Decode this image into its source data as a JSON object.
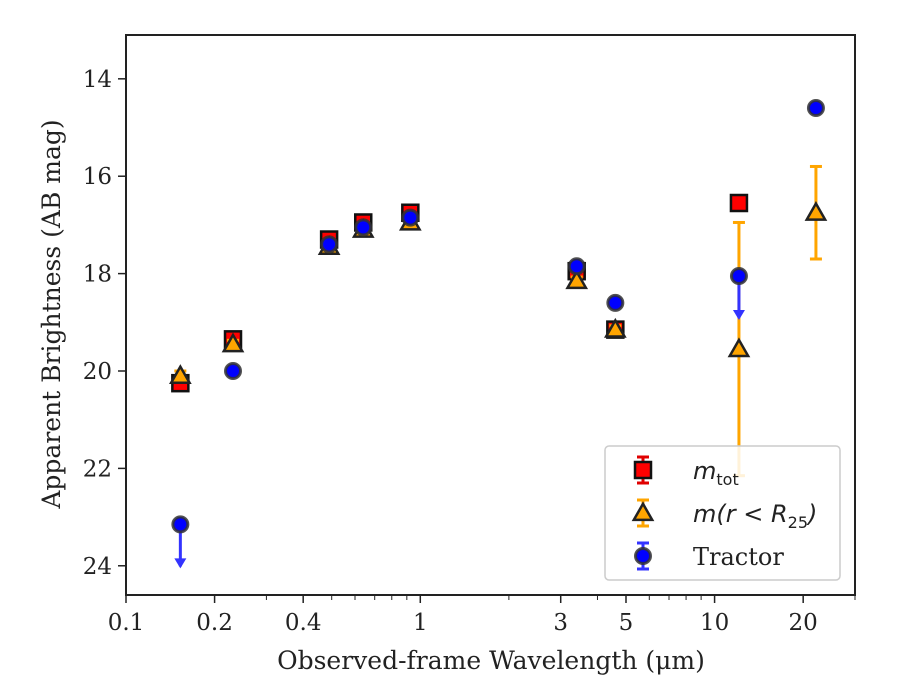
{
  "chart_data": {
    "type": "scatter",
    "xlabel": "Observed-frame Wavelength (μm)",
    "ylabel": "Apparent Brightness (AB mag)",
    "xscale": "log",
    "xlim": [
      0.1,
      30
    ],
    "ylim": [
      24.6,
      13.1
    ],
    "y_inverted": true,
    "x_ticks": [
      0.1,
      0.2,
      0.4,
      1,
      3,
      5,
      10,
      20
    ],
    "x_tick_labels": [
      "0.1",
      "0.2",
      "0.4",
      "1",
      "3",
      "5",
      "10",
      "20"
    ],
    "y_ticks": [
      14,
      16,
      18,
      20,
      22,
      24
    ],
    "y_tick_labels": [
      "14",
      "16",
      "18",
      "20",
      "22",
      "24"
    ],
    "legend_position": "lower-right",
    "series": [
      {
        "name": "m_tot",
        "label_main": "m",
        "label_sub": "tot",
        "marker": "square",
        "color": "#ff0000",
        "edge": "#111111",
        "errcolor": "#e00000",
        "points": [
          {
            "x": 0.153,
            "y": 20.25,
            "err": 0.1
          },
          {
            "x": 0.231,
            "y": 19.35,
            "err": 0.1
          },
          {
            "x": 0.49,
            "y": 17.3,
            "err": 0.08
          },
          {
            "x": 0.64,
            "y": 16.95,
            "err": 0.08
          },
          {
            "x": 0.925,
            "y": 16.75,
            "err": 0.08
          },
          {
            "x": 3.4,
            "y": 17.95,
            "err": 0.1
          },
          {
            "x": 4.6,
            "y": 19.15,
            "err": 0.08
          },
          {
            "x": 12.1,
            "y": 16.55,
            "err": 0.08
          }
        ]
      },
      {
        "name": "m(r < R25)",
        "label_main": "m(r < R",
        "label_sub": "25",
        "label_end": ")",
        "marker": "triangle",
        "color": "#ffa500",
        "edge": "#222222",
        "errcolor": "#ffa500",
        "points": [
          {
            "x": 0.153,
            "y": 20.1,
            "err": 0.1
          },
          {
            "x": 0.231,
            "y": 19.45,
            "err": 0.08
          },
          {
            "x": 0.49,
            "y": 17.45,
            "err": 0.06
          },
          {
            "x": 0.64,
            "y": 17.1,
            "err": 0.06
          },
          {
            "x": 0.925,
            "y": 16.95,
            "err": 0.06
          },
          {
            "x": 3.4,
            "y": 18.15,
            "err": 0.08
          },
          {
            "x": 4.6,
            "y": 19.15,
            "err": 0.08
          },
          {
            "x": 12.1,
            "y": 19.55,
            "err": 2.6
          },
          {
            "x": 22.1,
            "y": 16.75,
            "err": 0.95
          }
        ]
      },
      {
        "name": "Tractor",
        "marker": "circle",
        "color": "#0000ff",
        "edge": "#333333",
        "errcolor": "#3333ff",
        "points": [
          {
            "x": 0.153,
            "y": 23.15,
            "upper_limit": true
          },
          {
            "x": 0.231,
            "y": 20.0
          },
          {
            "x": 0.49,
            "y": 17.4
          },
          {
            "x": 0.64,
            "y": 17.05
          },
          {
            "x": 0.925,
            "y": 16.85
          },
          {
            "x": 3.4,
            "y": 17.85
          },
          {
            "x": 4.6,
            "y": 18.6
          },
          {
            "x": 12.1,
            "y": 18.05,
            "upper_limit": true
          },
          {
            "x": 22.1,
            "y": 14.6
          }
        ]
      }
    ]
  }
}
